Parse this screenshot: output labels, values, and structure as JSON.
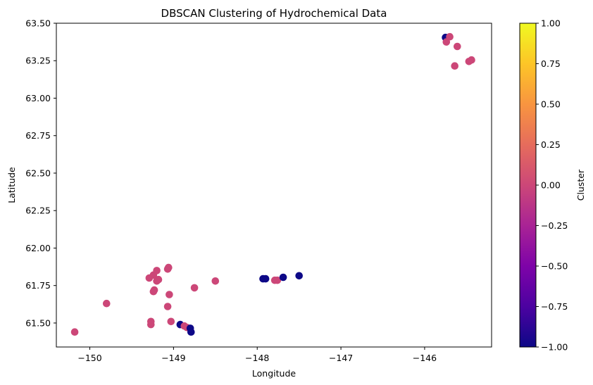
{
  "chart_data": {
    "type": "scatter",
    "title": "DBSCAN Clustering of Hydrochemical Data",
    "xlabel": "Longitude",
    "ylabel": "Latitude",
    "xlim": [
      -150.4,
      -145.2
    ],
    "ylim": [
      61.34,
      63.5
    ],
    "x_ticks": [
      -150,
      -149,
      -148,
      -147,
      -146
    ],
    "x_tick_labels": [
      "−150",
      "−149",
      "−148",
      "−147",
      "−146"
    ],
    "y_ticks": [
      61.5,
      61.75,
      62.0,
      62.25,
      62.5,
      62.75,
      63.0,
      63.25,
      63.5
    ],
    "y_tick_labels": [
      "61.50",
      "61.75",
      "62.00",
      "62.25",
      "62.50",
      "62.75",
      "63.00",
      "63.25",
      "63.50"
    ],
    "grid": false,
    "colormap": "plasma",
    "colorbar": {
      "label": "Cluster",
      "range": [
        -1.0,
        1.0
      ],
      "ticks": [
        -1.0,
        -0.75,
        -0.5,
        -0.25,
        0.0,
        0.25,
        0.5,
        0.75,
        1.0
      ],
      "tick_labels": [
        "−1.00",
        "−0.75",
        "−0.50",
        "−0.25",
        "0.00",
        "0.25",
        "0.50",
        "0.75",
        "1.00"
      ]
    },
    "colors": {
      "noise": "#0d0887",
      "cluster_0": "#cc4778"
    },
    "points": [
      {
        "x": -150.18,
        "y": 61.44,
        "cluster": 0
      },
      {
        "x": -149.8,
        "y": 61.63,
        "cluster": 0
      },
      {
        "x": -149.27,
        "y": 61.51,
        "cluster": 0
      },
      {
        "x": -149.27,
        "y": 61.49,
        "cluster": 0
      },
      {
        "x": -149.24,
        "y": 61.71,
        "cluster": 0
      },
      {
        "x": -149.23,
        "y": 61.72,
        "cluster": 0
      },
      {
        "x": -149.29,
        "y": 61.8,
        "cluster": 0
      },
      {
        "x": -149.24,
        "y": 61.82,
        "cluster": 0
      },
      {
        "x": -149.2,
        "y": 61.85,
        "cluster": 0
      },
      {
        "x": -149.18,
        "y": 61.79,
        "cluster": 0
      },
      {
        "x": -149.2,
        "y": 61.78,
        "cluster": 0
      },
      {
        "x": -149.07,
        "y": 61.86,
        "cluster": 0
      },
      {
        "x": -149.06,
        "y": 61.87,
        "cluster": 0
      },
      {
        "x": -149.07,
        "y": 61.61,
        "cluster": 0
      },
      {
        "x": -149.05,
        "y": 61.69,
        "cluster": 0
      },
      {
        "x": -149.03,
        "y": 61.51,
        "cluster": 0
      },
      {
        "x": -148.92,
        "y": 61.49,
        "cluster": -1
      },
      {
        "x": -148.87,
        "y": 61.48,
        "cluster": 0
      },
      {
        "x": -148.84,
        "y": 61.47,
        "cluster": 0
      },
      {
        "x": -148.8,
        "y": 61.465,
        "cluster": -1
      },
      {
        "x": -148.79,
        "y": 61.44,
        "cluster": -1
      },
      {
        "x": -148.75,
        "y": 61.735,
        "cluster": 0
      },
      {
        "x": -148.5,
        "y": 61.78,
        "cluster": 0
      },
      {
        "x": -147.93,
        "y": 61.795,
        "cluster": -1
      },
      {
        "x": -147.9,
        "y": 61.795,
        "cluster": -1
      },
      {
        "x": -147.79,
        "y": 61.785,
        "cluster": 0
      },
      {
        "x": -147.76,
        "y": 61.785,
        "cluster": 0
      },
      {
        "x": -147.69,
        "y": 61.805,
        "cluster": -1
      },
      {
        "x": -147.5,
        "y": 61.815,
        "cluster": -1
      },
      {
        "x": -145.75,
        "y": 63.405,
        "cluster": -1
      },
      {
        "x": -145.74,
        "y": 63.375,
        "cluster": 0
      },
      {
        "x": -145.7,
        "y": 63.41,
        "cluster": 0
      },
      {
        "x": -145.61,
        "y": 63.345,
        "cluster": 0
      },
      {
        "x": -145.64,
        "y": 63.215,
        "cluster": 0
      },
      {
        "x": -145.47,
        "y": 63.245,
        "cluster": 0
      },
      {
        "x": -145.44,
        "y": 63.255,
        "cluster": 0
      }
    ]
  }
}
